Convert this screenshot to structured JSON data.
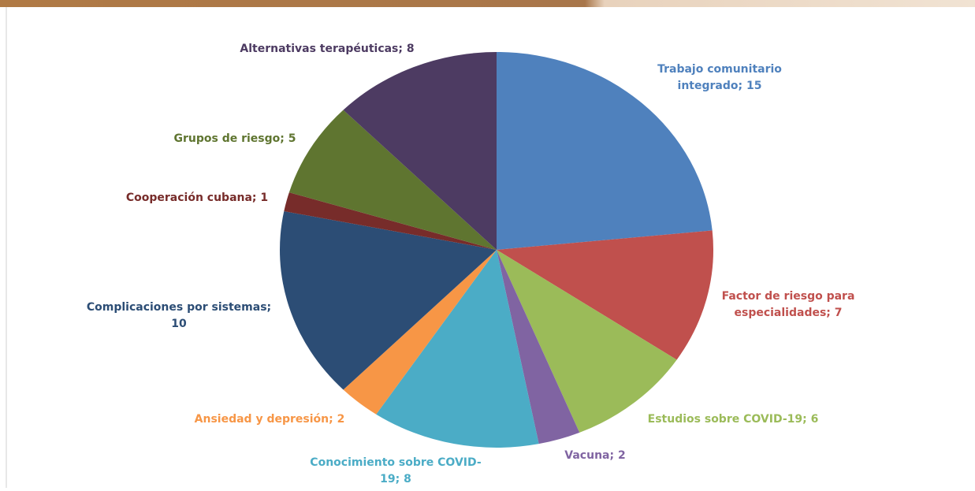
{
  "chart_data": {
    "type": "pie",
    "values": [
      15,
      7,
      6,
      2,
      8,
      2,
      10,
      1,
      5,
      8
    ],
    "value_labels": [
      [
        "Trabajo comunitario",
        "integrado; 15"
      ],
      [
        "Factor de riesgo para",
        "especialidades; 7"
      ],
      [
        "Estudios sobre COVID-19; 6"
      ],
      [
        "Vacuna; 2"
      ],
      [
        "Conocimiento sobre COVID-",
        "19; 8"
      ],
      [
        "Ansiedad y depresión; 2"
      ],
      [
        "Complicaciones por sistemas;",
        "10"
      ],
      [
        "Cooperación cubana; 1"
      ],
      [
        "Grupos de riesgo; 5"
      ],
      [
        "Alternativas terapéuticas; 8"
      ]
    ],
    "colors": [
      "#4f81bd",
      "#c0504d",
      "#9bbb59",
      "#8064a2",
      "#4bacc6",
      "#f79646",
      "#2c4d75",
      "#772c2a",
      "#5f7530",
      "#4d3b62"
    ]
  }
}
